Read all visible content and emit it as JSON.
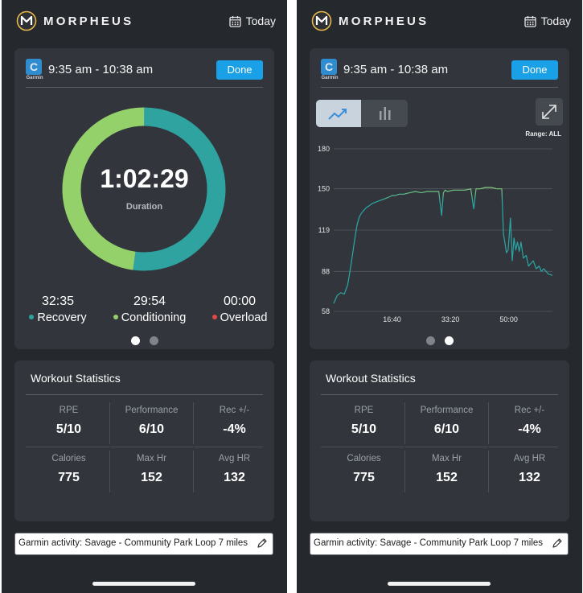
{
  "app": {
    "brand": "MORPHEUS",
    "today_label": "Today"
  },
  "workout": {
    "time_range": "9:35 am - 10:38 am",
    "done_label": "Done",
    "device_label": "Garmin"
  },
  "summary": {
    "duration": "1:02:29",
    "duration_label": "Duration",
    "zones": [
      {
        "value": "32:35",
        "label": "Recovery",
        "color": "#2ea3a0"
      },
      {
        "value": "29:54",
        "label": "Conditioning",
        "color": "#94d16a"
      },
      {
        "value": "00:00",
        "label": "Overload",
        "color": "#e04848"
      }
    ],
    "ring": {
      "recovery_fraction": 0.5215,
      "conditioning_fraction": 0.4785,
      "overload_fraction": 0
    }
  },
  "stats": {
    "title": "Workout Statistics",
    "items": [
      {
        "label": "RPE",
        "value": "5/10"
      },
      {
        "label": "Performance",
        "value": "6/10"
      },
      {
        "label": "Rec +/-",
        "value": "-4%"
      },
      {
        "label": "Calories",
        "value": "775"
      },
      {
        "label": "Max Hr",
        "value": "152"
      },
      {
        "label": "Avg HR",
        "value": "132"
      }
    ]
  },
  "activity": {
    "text": "Garmin activity: Savage - Community Park Loop 7 miles"
  },
  "chart_controls": {
    "range_label": "Range: ALL",
    "active_view": "line"
  },
  "chart_data": {
    "type": "line",
    "title": "",
    "xlabel": "",
    "ylabel": "",
    "y_ticks": [
      "180",
      "150",
      "119",
      "88",
      "58"
    ],
    "x_ticks": [
      "16:40",
      "33:20",
      "50:00"
    ],
    "ylim": [
      58,
      180
    ],
    "xlim": [
      0,
      3749
    ],
    "grid": true,
    "colors": {
      "low": "#2aa6a3",
      "high": "#a8d76b"
    },
    "series": [
      {
        "x": [
          0,
          60,
          120,
          180,
          240,
          300,
          360,
          400,
          440,
          480,
          520,
          560,
          600,
          660,
          720,
          780,
          840,
          900,
          960,
          1000,
          1060,
          1120,
          1200,
          1300,
          1400,
          1500,
          1600,
          1700,
          1800,
          1850,
          1880,
          1910,
          1950,
          2050,
          2150,
          2250,
          2350,
          2400,
          2440,
          2470,
          2510,
          2600,
          2700,
          2800,
          2880,
          2910,
          2940,
          2960,
          2990,
          3030,
          3060,
          3090,
          3120,
          3150,
          3180,
          3210,
          3250,
          3300,
          3340,
          3380,
          3420,
          3470,
          3520,
          3560,
          3600,
          3640,
          3680,
          3749
        ],
        "y": [
          64,
          70,
          72,
          71,
          78,
          94,
          112,
          123,
          129,
          132,
          134,
          136,
          137,
          139,
          140,
          141,
          142,
          143,
          144,
          145,
          145,
          146,
          146,
          147,
          148,
          147,
          148,
          148,
          148,
          130,
          147,
          149,
          148,
          149,
          149,
          149,
          150,
          135,
          150,
          150,
          150,
          151,
          151,
          150,
          150,
          116,
          108,
          102,
          104,
          128,
          96,
          113,
          104,
          110,
          103,
          110,
          98,
          100,
          92,
          94,
          96,
          90,
          92,
          88,
          90,
          88,
          86,
          85
        ]
      }
    ]
  }
}
